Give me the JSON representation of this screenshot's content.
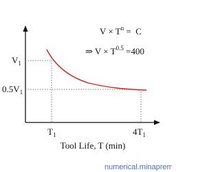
{
  "equation_1": {
    "base": "V × T",
    "exponent": "n",
    "rest": " =  C"
  },
  "equation_2": {
    "base": "⇒ V × T",
    "exponent": "0.5",
    "rest": " =400"
  },
  "y_labels": [
    {
      "text": "V",
      "subscript": "1"
    },
    {
      "text": "0.5V",
      "subscript": "1"
    }
  ],
  "x_labels": [
    {
      "text": "T",
      "subscript": "1"
    },
    {
      "text": "4T",
      "subscript": "1"
    }
  ],
  "x_axis_title": "Tool Life, T (min)",
  "watermark": "numerical.minaprem"
}
